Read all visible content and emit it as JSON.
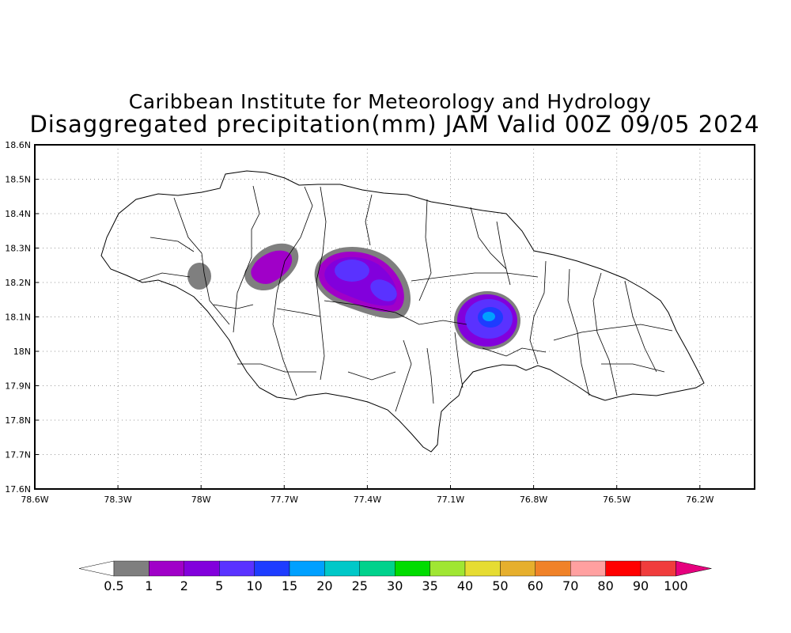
{
  "title": {
    "line1": "Caribbean Institute for Meteorology and Hydrology",
    "line2": "Disaggregated precipitation(mm) JAM Valid 00Z 09/05 2024"
  },
  "axes": {
    "lat_labels": [
      "18.6N",
      "18.5N",
      "18.4N",
      "18.3N",
      "18.2N",
      "18.1N",
      "18N",
      "17.9N",
      "17.8N",
      "17.7N",
      "17.6N"
    ],
    "lon_labels": [
      "78.6W",
      "78.3W",
      "78W",
      "77.7W",
      "77.4W",
      "77.1W",
      "76.8W",
      "76.5W",
      "76.2W"
    ],
    "lat_range": [
      17.6,
      18.6
    ],
    "lon_range": [
      -78.6,
      -76.0
    ],
    "grid": "dotted"
  },
  "colorbar": {
    "labels": [
      "0.5",
      "1",
      "2",
      "5",
      "10",
      "15",
      "20",
      "25",
      "30",
      "35",
      "40",
      "50",
      "60",
      "70",
      "80",
      "90",
      "100"
    ],
    "colors": [
      "#7f7f7f",
      "#a000c8",
      "#8200dc",
      "#5a32ff",
      "#1e3cff",
      "#00a0ff",
      "#00c8c8",
      "#00d28c",
      "#00dc00",
      "#a0e632",
      "#e6dc32",
      "#e6af2d",
      "#f08228",
      "#ffa0a0",
      "#ff0000",
      "#f03c3c"
    ],
    "over_color": "#e6007e",
    "under_color": "#ffffff"
  },
  "precip_areas": [
    {
      "name": "west",
      "lon": -78.01,
      "lat": 18.22,
      "max_mm": 0.5
    },
    {
      "name": "northwest",
      "lon": -77.72,
      "lat": 18.25,
      "max_mm": 1
    },
    {
      "name": "central-north",
      "lon": -77.37,
      "lat": 18.19,
      "max_mm": 5
    },
    {
      "name": "central-east",
      "lon": -76.92,
      "lat": 18.1,
      "max_mm": 10
    }
  ]
}
